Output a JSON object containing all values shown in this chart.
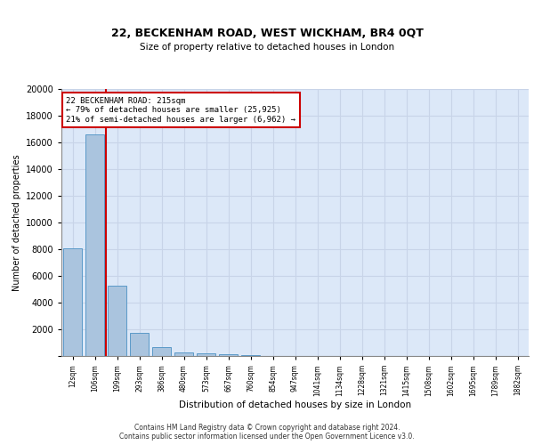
{
  "title": "22, BECKENHAM ROAD, WEST WICKHAM, BR4 0QT",
  "subtitle": "Size of property relative to detached houses in London",
  "xlabel": "Distribution of detached houses by size in London",
  "ylabel": "Number of detached properties",
  "categories": [
    "12sqm",
    "106sqm",
    "199sqm",
    "293sqm",
    "386sqm",
    "480sqm",
    "573sqm",
    "667sqm",
    "760sqm",
    "854sqm",
    "947sqm",
    "1041sqm",
    "1134sqm",
    "1228sqm",
    "1321sqm",
    "1415sqm",
    "1508sqm",
    "1602sqm",
    "1695sqm",
    "1789sqm",
    "1882sqm"
  ],
  "values": [
    8100,
    16600,
    5300,
    1750,
    700,
    280,
    200,
    130,
    100,
    0,
    0,
    0,
    0,
    0,
    0,
    0,
    0,
    0,
    0,
    0,
    0
  ],
  "bar_color": "#aac4de",
  "bar_edge_color": "#5a9ac8",
  "property_line_color": "#cc0000",
  "annotation_text": "22 BECKENHAM ROAD: 215sqm\n← 79% of detached houses are smaller (25,925)\n21% of semi-detached houses are larger (6,962) →",
  "annotation_box_color": "#cc0000",
  "ylim": [
    0,
    20000
  ],
  "yticks": [
    0,
    2000,
    4000,
    6000,
    8000,
    10000,
    12000,
    14000,
    16000,
    18000,
    20000
  ],
  "grid_color": "#c8d4e8",
  "background_color": "#dce8f8",
  "footer_line1": "Contains HM Land Registry data © Crown copyright and database right 2024.",
  "footer_line2": "Contains public sector information licensed under the Open Government Licence v3.0."
}
